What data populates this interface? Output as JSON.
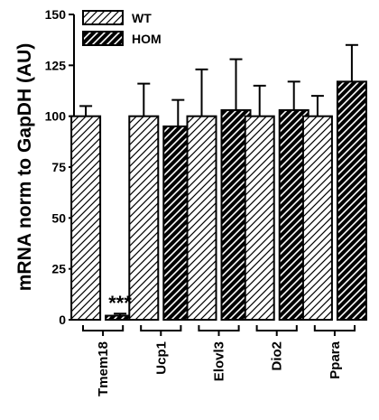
{
  "chart_data": {
    "type": "bar",
    "ylabel": "mRNA norm to GapDH (AU)",
    "xlabel": "",
    "ylim": [
      0,
      150
    ],
    "yticks": [
      "0",
      "25",
      "50",
      "75",
      "100",
      "125",
      "150"
    ],
    "categories": [
      "Tmem18",
      "Ucp1",
      "Elovl3",
      "Dio2",
      "Ppara"
    ],
    "series": [
      {
        "name": "WT",
        "values": [
          100,
          100,
          100,
          100,
          100
        ],
        "errors": [
          5,
          16,
          23,
          15,
          10
        ],
        "fill": "hatched-light"
      },
      {
        "name": "HOM",
        "values": [
          2,
          95,
          103,
          103,
          117
        ],
        "errors": [
          1,
          13,
          25,
          14,
          18
        ],
        "fill": "hatched-dark"
      }
    ],
    "annotations": [
      {
        "category": "Tmem18",
        "series": "HOM",
        "text": "***"
      }
    ],
    "legend": "top-left",
    "grid": false
  }
}
